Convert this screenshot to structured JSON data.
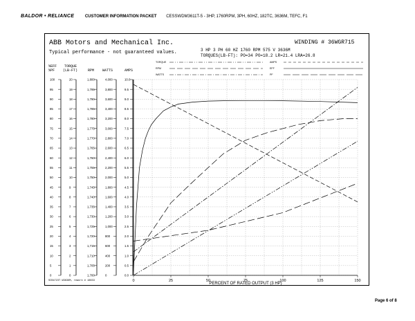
{
  "header": {
    "brand": "BALDOR • RELIANCE",
    "packet": "CUSTOMER INFORMATION PACKET",
    "description": "CESSWDM3611T-5 - 3HP, 1760RPM, 3PH, 60HZ, 182TC, 3636M, TEFC, F1"
  },
  "sheet": {
    "company": "ABB Motors and Mechanical Inc.",
    "typical": "Typical performance - not guaranteed values.",
    "winding": "WINDING # 36WGR715",
    "specs": "3 HP  3 PH  60 HZ  1760 RPM  575 V  3636M",
    "torques": "TORQUES(LB-FT): PO=34  PO=18.2  LR=21.4  LRA=26.8",
    "legend_left": [
      "TORQUE",
      "RPM",
      "WATTS"
    ],
    "legend_right": [
      "AMPS",
      "EFF",
      "PF"
    ],
    "code": "SCB4723T W3636M, rework # 18833"
  },
  "columns": {
    "headers": [
      {
        "top": "%EFF",
        "bottom": "%PF"
      },
      {
        "top": "TORQUE",
        "bottom": "(LB-FT)"
      },
      {
        "top": "",
        "bottom": "RPM"
      },
      {
        "top": "",
        "bottom": "WATTS"
      },
      {
        "top": "",
        "bottom": "AMPS"
      }
    ],
    "eff_pf": [
      "100",
      "95",
      "90",
      "85",
      "80",
      "75",
      "70",
      "65",
      "60",
      "55",
      "50",
      "45",
      "40",
      "35",
      "30",
      "25",
      "20",
      "15",
      "10",
      "5",
      "0"
    ],
    "torque": [
      "20",
      "19",
      "18",
      "17",
      "16",
      "15",
      "14",
      "13",
      "12",
      "11",
      "10",
      "9",
      "8",
      "7",
      "6",
      "5",
      "4",
      "3",
      "2",
      "1",
      "0"
    ],
    "rpm": [
      "1,800",
      "1,795",
      "1,790",
      "1,785",
      "1,780",
      "1,775",
      "1,770",
      "1,765",
      "1,760",
      "1,755",
      "1,750",
      "1,745",
      "1,740",
      "1,735",
      "1,730",
      "1,725",
      "1,720",
      "1,715",
      "1,710",
      "1,705",
      "1,700"
    ],
    "watts": [
      "4,000",
      "3,800",
      "3,600",
      "3,400",
      "3,200",
      "3,000",
      "2,800",
      "2,600",
      "2,400",
      "2,200",
      "2,000",
      "1,800",
      "1,600",
      "1,400",
      "1,200",
      "1,000",
      "800",
      "600",
      "400",
      "200",
      "0"
    ],
    "amps": [
      "10.0",
      "9.5",
      "9.0",
      "8.5",
      "8.0",
      "7.5",
      "7.0",
      "6.5",
      "6.0",
      "5.5",
      "5.0",
      "4.5",
      "4.0",
      "3.5",
      "3.0",
      "2.5",
      "2.0",
      "1.5",
      "1.0",
      "0.5",
      "0.0"
    ]
  },
  "chart_data": {
    "type": "line",
    "xlabel": "PERCENT OF RATED OUTPUT (3 HP)",
    "x_ticks": [
      "0",
      "25",
      "50",
      "75",
      "100",
      "125",
      "150"
    ],
    "xlim": [
      0,
      150
    ],
    "ylim": [
      0,
      100
    ],
    "series": [
      {
        "name": "EFF",
        "dash": "solid",
        "x": [
          0,
          2,
          4,
          6,
          8,
          10,
          12,
          15,
          20,
          25,
          30,
          40,
          50,
          60,
          75,
          100,
          125,
          150
        ],
        "y": [
          2,
          35,
          55,
          64,
          70,
          74,
          77,
          80,
          84,
          86,
          87.5,
          88.5,
          89,
          89.2,
          89.3,
          89.2,
          88.8,
          88.2
        ]
      },
      {
        "name": "PF",
        "dash": "long-dash",
        "x": [
          0,
          10,
          25,
          40,
          50,
          60,
          75,
          90,
          100,
          110,
          125,
          140,
          150
        ],
        "y": [
          7,
          20,
          37,
          48,
          55,
          62,
          69,
          73,
          75,
          77,
          79,
          80,
          80
        ]
      },
      {
        "name": "AMPS",
        "dash": "dash",
        "x": [
          0,
          150
        ],
        "y": [
          97.5,
          37.5
        ]
      },
      {
        "name": "WATTS",
        "dash": "dash-dot",
        "x": [
          0,
          150
        ],
        "y": [
          12,
          96
        ]
      },
      {
        "name": "TORQUE",
        "dash": "dash-dot-dot",
        "x": [
          0,
          150
        ],
        "y": [
          0,
          68.5
        ]
      },
      {
        "name": "RPM",
        "dash": "long-dash",
        "x": [
          0,
          50,
          100,
          150
        ],
        "y": [
          17.5,
          23,
          32,
          47
        ]
      }
    ]
  }
}
